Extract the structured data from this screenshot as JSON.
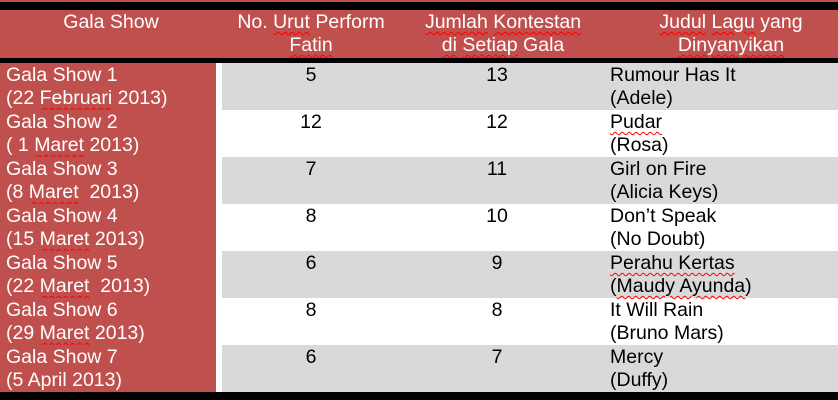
{
  "colors": {
    "header_bg": "#C0504D",
    "row_alt_bg": "#D9D9D9",
    "row_bg": "#FFFFFF",
    "border": "#000000",
    "header_text": "#FFFFFF",
    "body_text": "#000000",
    "spellcheck_underline": "#FF0000"
  },
  "table": {
    "headers": [
      {
        "id": "gala-show",
        "lines": [
          [
            {
              "t": "Gala Show"
            }
          ]
        ]
      },
      {
        "id": "no-urut-perform-fatin",
        "lines": [
          [
            {
              "t": "No. "
            },
            {
              "t": "Urut",
              "w": true
            },
            {
              "t": " Perform"
            }
          ],
          [
            {
              "t": "Fatin",
              "w": true
            }
          ]
        ]
      },
      {
        "id": "jumlah-kontestan-di-setiap-gala",
        "lines": [
          [
            {
              "t": "Jumlah",
              "w": true
            },
            {
              "t": " "
            },
            {
              "t": "Kontestan",
              "w": true
            }
          ],
          [
            {
              "t": "di",
              "w": true
            },
            {
              "t": " "
            },
            {
              "t": "Setiap",
              "w": true
            },
            {
              "t": " Gala"
            }
          ]
        ]
      },
      {
        "id": "judul-lagu-yang-dinyanyikan",
        "lines": [
          [
            {
              "t": "Judul",
              "w": true
            },
            {
              "t": " "
            },
            {
              "t": "Lagu",
              "w": true
            },
            {
              "t": " yang"
            }
          ],
          [
            {
              "t": "Dinyanyikan",
              "w": true
            }
          ]
        ]
      }
    ],
    "rows": [
      {
        "gala": [
          [
            {
              "t": "Gala Show 1"
            }
          ],
          [
            {
              "t": "(22 "
            },
            {
              "t": "Februari",
              "w": true
            },
            {
              "t": " 2013)"
            }
          ]
        ],
        "urut": "5",
        "jumlah": "13",
        "judul": [
          [
            {
              "t": "Rumour Has It"
            }
          ],
          [
            {
              "t": "(Adele)"
            }
          ]
        ]
      },
      {
        "gala": [
          [
            {
              "t": "Gala Show 2"
            }
          ],
          [
            {
              "t": "( 1 "
            },
            {
              "t": "Maret",
              "w": true
            },
            {
              "t": " 2013)"
            }
          ]
        ],
        "urut": "12",
        "jumlah": "12",
        "judul": [
          [
            {
              "t": "Pudar",
              "w": true
            }
          ],
          [
            {
              "t": "(Rosa)"
            }
          ]
        ]
      },
      {
        "gala": [
          [
            {
              "t": "Gala Show 3"
            }
          ],
          [
            {
              "t": "(8 "
            },
            {
              "t": "Maret",
              "w": true
            },
            {
              "t": "  2013)"
            }
          ]
        ],
        "urut": "7",
        "jumlah": "11",
        "judul": [
          [
            {
              "t": "Girl on Fire"
            }
          ],
          [
            {
              "t": "(Alicia Keys)"
            }
          ]
        ]
      },
      {
        "gala": [
          [
            {
              "t": "Gala Show 4"
            }
          ],
          [
            {
              "t": "(15 "
            },
            {
              "t": "Maret",
              "w": true
            },
            {
              "t": " 2013)"
            }
          ]
        ],
        "urut": "8",
        "jumlah": "10",
        "judul": [
          [
            {
              "t": "Don’t Speak"
            }
          ],
          [
            {
              "t": "(No Doubt)"
            }
          ]
        ]
      },
      {
        "gala": [
          [
            {
              "t": "Gala Show 5"
            }
          ],
          [
            {
              "t": "(22 "
            },
            {
              "t": "Maret",
              "w": true
            },
            {
              "t": "  2013)"
            }
          ]
        ],
        "urut": "6",
        "jumlah": "9",
        "judul": [
          [
            {
              "t": "Perahu Kertas",
              "w": true
            }
          ],
          [
            {
              "t": "("
            },
            {
              "t": "Maudy Ayunda",
              "w": true
            },
            {
              "t": ")"
            }
          ]
        ]
      },
      {
        "gala": [
          [
            {
              "t": "Gala Show 6"
            }
          ],
          [
            {
              "t": "(29 "
            },
            {
              "t": "Maret",
              "w": true
            },
            {
              "t": " 2013)"
            }
          ]
        ],
        "urut": "8",
        "jumlah": "8",
        "judul": [
          [
            {
              "t": "It Will Rain"
            }
          ],
          [
            {
              "t": "(Bruno Mars)"
            }
          ]
        ]
      },
      {
        "gala": [
          [
            {
              "t": "Gala Show 7"
            }
          ],
          [
            {
              "t": "(5 April 2013)"
            }
          ]
        ],
        "urut": "6",
        "jumlah": "7",
        "judul": [
          [
            {
              "t": "Mercy"
            }
          ],
          [
            {
              "t": "(Duffy)"
            }
          ]
        ]
      }
    ]
  }
}
